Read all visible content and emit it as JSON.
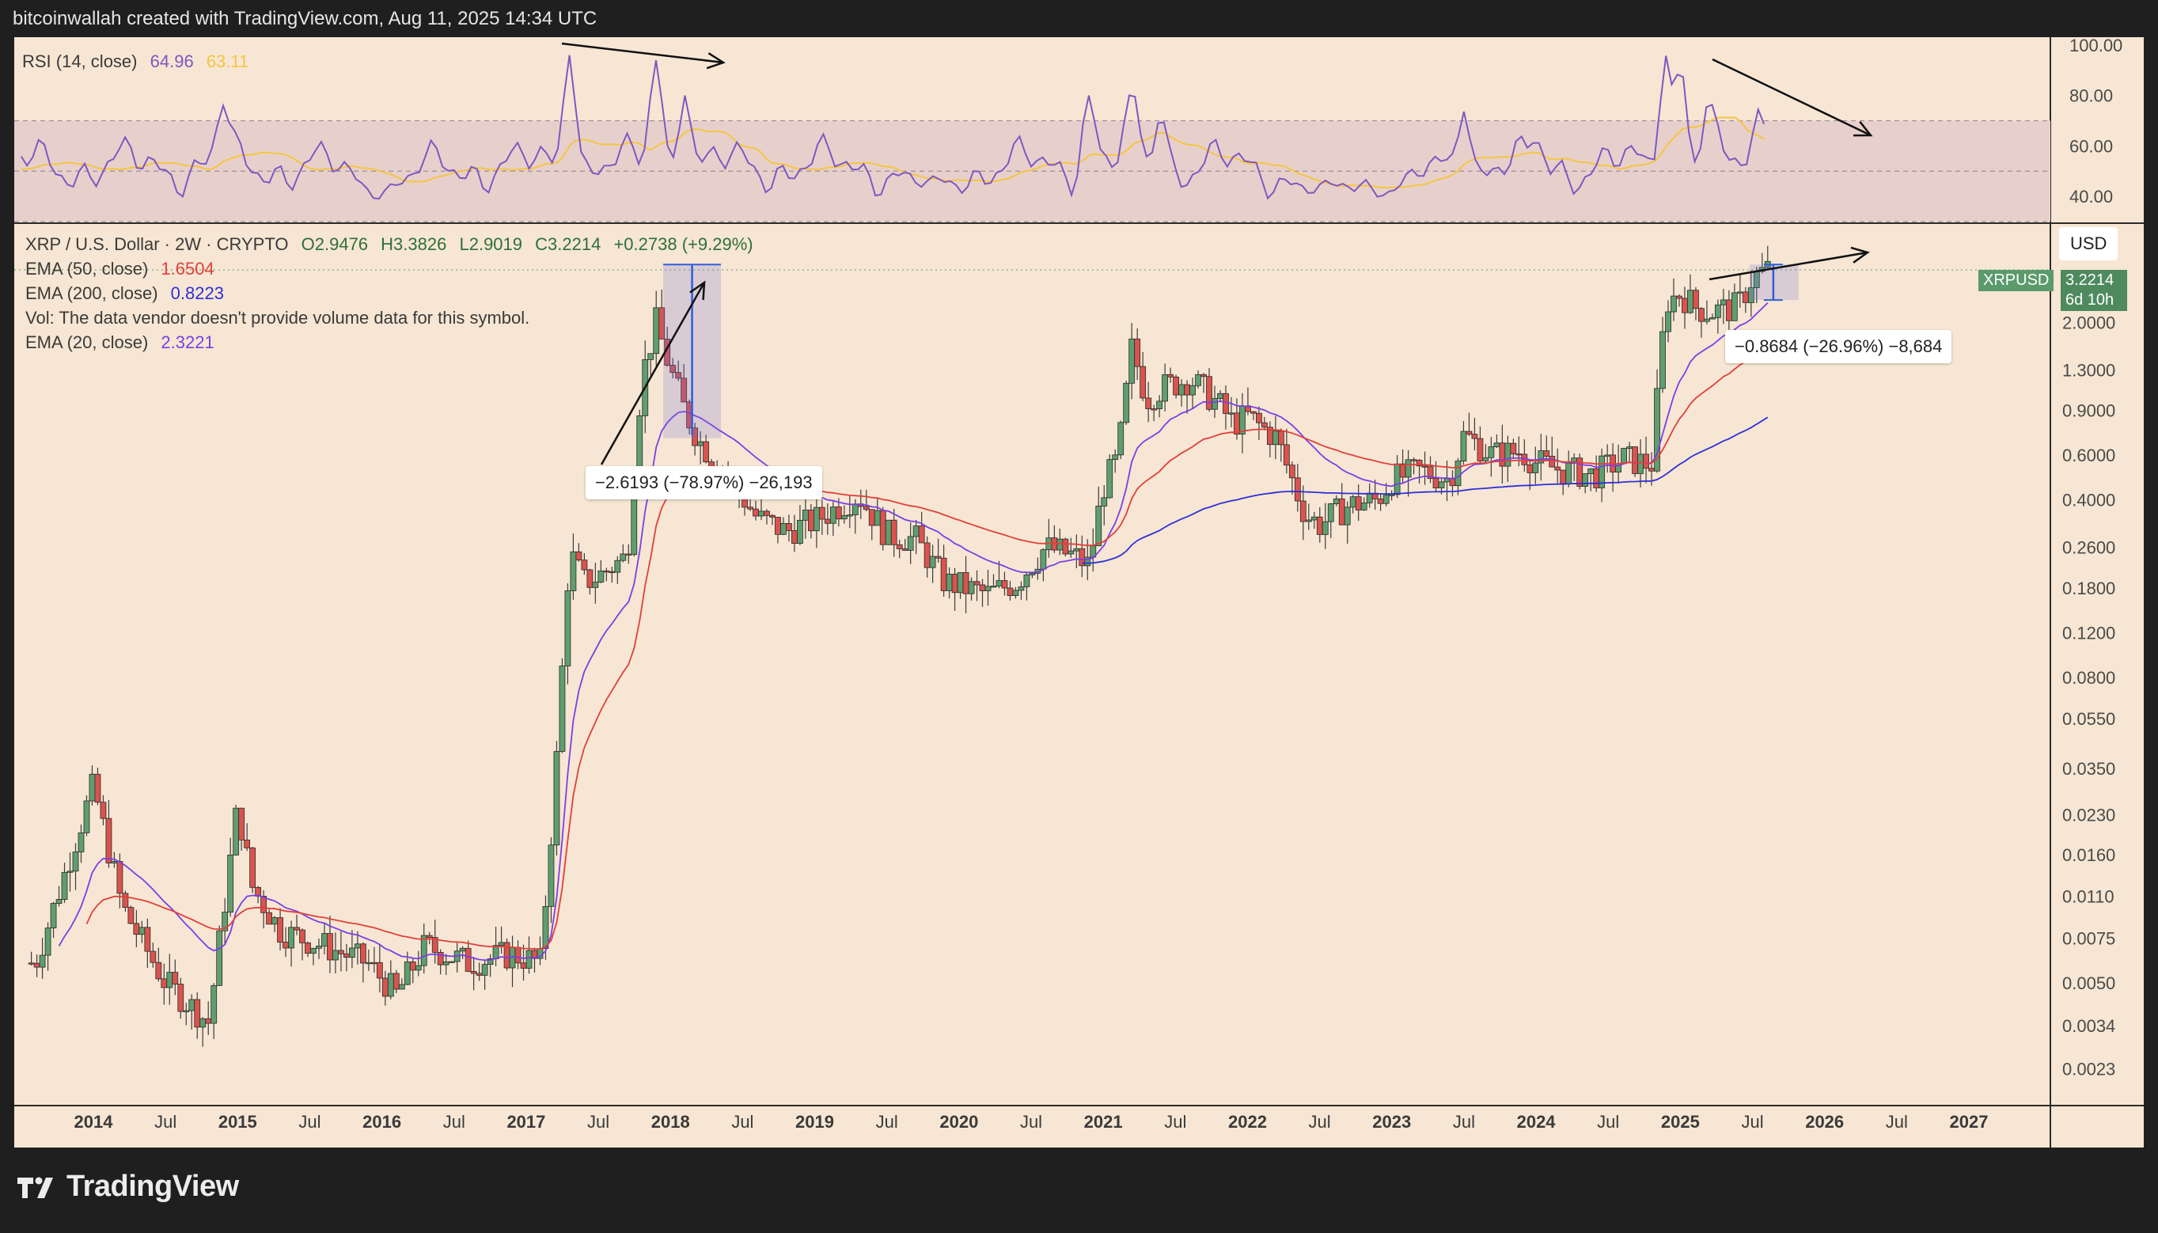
{
  "header": {
    "text": "bitcoinwallah created with TradingView.com, Aug 11, 2025 14:34 UTC"
  },
  "rsi": {
    "title": "RSI (14, close)",
    "value": "64.96",
    "ma_value": "63.11",
    "axis_ticks": [
      "100.00",
      "80.00",
      "60.00",
      "40.00"
    ],
    "line_color": "#7e57c2",
    "ma_color": "#f5c542"
  },
  "main": {
    "symbol_line": "XRP / U.S. Dollar · 2W · CRYPTO",
    "ohlc": {
      "o": "O2.9476",
      "h": "H3.3826",
      "l": "L2.9019",
      "c": "C3.2214",
      "chg": "+0.2738 (+9.29%)"
    },
    "ema50": {
      "label": "EMA (50, close)",
      "value": "1.6504",
      "color": "#e0403c"
    },
    "ema200": {
      "label": "EMA (200, close)",
      "value": "0.8223",
      "color": "#2f2fd8"
    },
    "vol_note": "Vol: The data vendor doesn't provide volume data for this symbol.",
    "ema20": {
      "label": "EMA (20, close)",
      "value": "2.3221",
      "color": "#7b3fe4"
    },
    "currency": "USD",
    "price_tag": {
      "symbol": "XRPUSD",
      "price": "3.2214",
      "countdown": "6d 10h"
    },
    "measure_1": "−2.6193 (−78.97%) −26,193",
    "measure_2": "−0.8684 (−26.96%) −8,684"
  },
  "chart_data": {
    "type": "candlestick",
    "title": "XRP / U.S. Dollar · 2W · CRYPTO",
    "x_ticks": [
      "2014",
      "Jul",
      "2015",
      "Jul",
      "2016",
      "Jul",
      "2017",
      "Jul",
      "2018",
      "Jul",
      "2019",
      "Jul",
      "2020",
      "Jul",
      "2021",
      "Jul",
      "2022",
      "Jul",
      "2023",
      "Jul",
      "2024",
      "Jul",
      "2025",
      "Jul",
      "2026",
      "Jul",
      "2027"
    ],
    "y_scale": "log",
    "y_ticks": [
      "3.2214",
      "2.0000",
      "1.3000",
      "0.9000",
      "0.6000",
      "0.4000",
      "0.2600",
      "0.1800",
      "0.1200",
      "0.0800",
      "0.0550",
      "0.0350",
      "0.0230",
      "0.0160",
      "0.0110",
      "0.0075",
      "0.0050",
      "0.0034",
      "0.0023"
    ],
    "price_series": {
      "t": [
        2013.6,
        2014.0,
        2014.2,
        2014.5,
        2014.8,
        2015.0,
        2015.1,
        2015.3,
        2015.6,
        2015.9,
        2016.1,
        2016.3,
        2016.6,
        2016.9,
        2017.1,
        2017.2,
        2017.3,
        2017.4,
        2017.5,
        2017.6,
        2017.7,
        2017.8,
        2017.9,
        2018.0,
        2018.1,
        2018.2,
        2018.4,
        2018.6,
        2018.8,
        2019.0,
        2019.3,
        2019.5,
        2019.7,
        2019.9,
        2020.2,
        2020.4,
        2020.6,
        2020.8,
        2020.9,
        2021.0,
        2021.1,
        2021.2,
        2021.3,
        2021.4,
        2021.6,
        2021.8,
        2021.9,
        2022.0,
        2022.2,
        2022.4,
        2022.5,
        2022.7,
        2022.9,
        2023.0,
        2023.2,
        2023.4,
        2023.5,
        2023.7,
        2023.9,
        2024.0,
        2024.2,
        2024.4,
        2024.6,
        2024.8,
        2024.9,
        2025.0,
        2025.1,
        2025.2,
        2025.4,
        2025.5,
        2025.6
      ],
      "close": [
        0.006,
        0.03,
        0.01,
        0.005,
        0.0035,
        0.025,
        0.012,
        0.008,
        0.007,
        0.006,
        0.0045,
        0.007,
        0.006,
        0.0065,
        0.006,
        0.03,
        0.25,
        0.19,
        0.2,
        0.22,
        0.24,
        1.2,
        2.0,
        1.3,
        0.9,
        0.68,
        0.5,
        0.34,
        0.3,
        0.33,
        0.42,
        0.29,
        0.28,
        0.19,
        0.17,
        0.19,
        0.26,
        0.24,
        0.22,
        0.45,
        0.58,
        1.6,
        1.0,
        1.1,
        1.2,
        0.95,
        0.8,
        0.85,
        0.7,
        0.35,
        0.32,
        0.38,
        0.4,
        0.48,
        0.52,
        0.48,
        0.72,
        0.6,
        0.62,
        0.56,
        0.52,
        0.5,
        0.58,
        0.55,
        2.4,
        2.6,
        2.3,
        2.2,
        2.3,
        3.0,
        3.2214
      ]
    },
    "ema20": {
      "name": "EMA (20, close)",
      "last": 2.3221
    },
    "ema50": {
      "name": "EMA (50, close)",
      "last": 1.6504
    },
    "ema200": {
      "name": "EMA (200, close)",
      "last": 0.8223
    },
    "rsi": {
      "name": "RSI (14, close)",
      "last": 64.96,
      "ma_last": 63.11,
      "ylim": [
        30,
        100
      ],
      "band": [
        30,
        70
      ]
    },
    "annotations": [
      "−2.6193 (−78.97%) −26,193",
      "−0.8684 (−26.96%) −8,684"
    ]
  }
}
